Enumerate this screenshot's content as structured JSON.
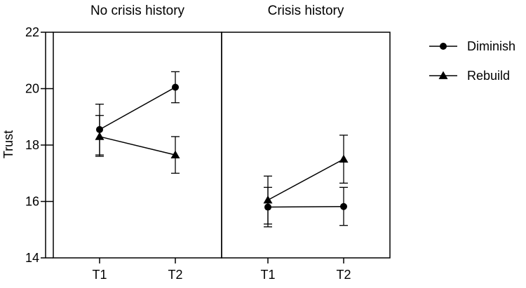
{
  "chart_data": {
    "type": "line",
    "ylabel": "Trust",
    "ylim": [
      14,
      22
    ],
    "yticks": [
      14,
      16,
      18,
      20,
      22
    ],
    "categories": [
      "T1",
      "T2"
    ],
    "grid": false,
    "legend_position": "right",
    "panels": [
      {
        "title": "No crisis history",
        "series": [
          {
            "name": "Diminish",
            "marker": "circle",
            "values": [
              18.55,
              20.05
            ],
            "error": [
              [
                17.65,
                19.45
              ],
              [
                19.5,
                20.6
              ]
            ]
          },
          {
            "name": "Rebuild",
            "marker": "triangle",
            "values": [
              18.3,
              17.65
            ],
            "error": [
              [
                17.6,
                19.05
              ],
              [
                17.0,
                18.3
              ]
            ]
          }
        ]
      },
      {
        "title": "Crisis history",
        "series": [
          {
            "name": "Diminish",
            "marker": "circle",
            "values": [
              15.8,
              15.82
            ],
            "error": [
              [
                15.1,
                16.5
              ],
              [
                15.15,
                16.5
              ]
            ]
          },
          {
            "name": "Rebuild",
            "marker": "triangle",
            "values": [
              16.05,
              17.5
            ],
            "error": [
              [
                15.2,
                16.9
              ],
              [
                16.65,
                18.35
              ]
            ]
          }
        ]
      }
    ]
  }
}
